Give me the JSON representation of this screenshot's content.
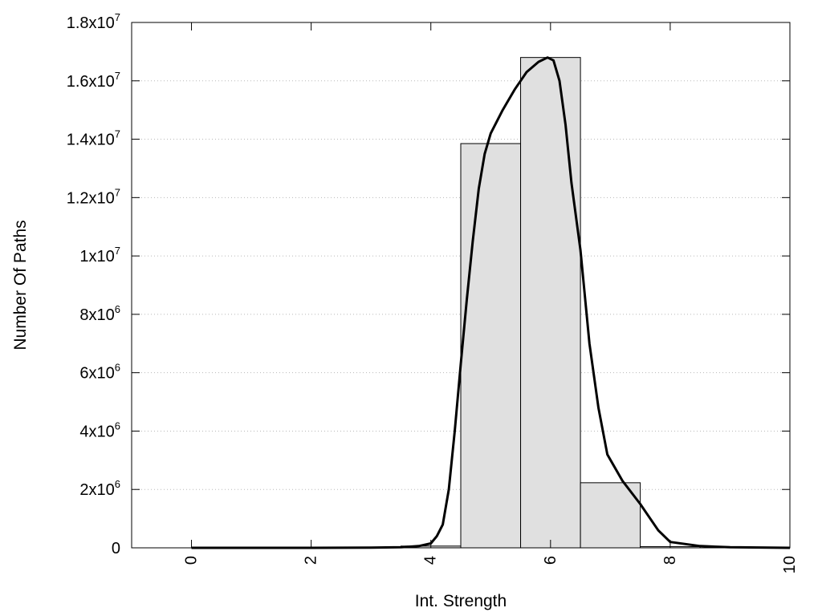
{
  "chart_data": {
    "type": "bar",
    "title": "",
    "xlabel": "Int. Strength",
    "ylabel": "Number Of Paths",
    "xlim": [
      -1,
      10
    ],
    "ylim": [
      0,
      18000000
    ],
    "grid": "horizontal dotted",
    "bar_color": "#e0e0e0",
    "line_color": "#000000",
    "x_ticks": [
      0,
      2,
      4,
      6,
      8,
      10
    ],
    "x_tick_labels": [
      "0",
      "2",
      "4",
      "6",
      "8",
      "10"
    ],
    "y_ticks": [
      0,
      2000000,
      4000000,
      6000000,
      8000000,
      10000000,
      12000000,
      14000000,
      16000000,
      18000000
    ],
    "y_tick_labels": [
      {
        "mantissa": "0",
        "exp": ""
      },
      {
        "mantissa": "2x10",
        "exp": "6"
      },
      {
        "mantissa": "4x10",
        "exp": "6"
      },
      {
        "mantissa": "6x10",
        "exp": "6"
      },
      {
        "mantissa": "8x10",
        "exp": "6"
      },
      {
        "mantissa": "1x10",
        "exp": "7"
      },
      {
        "mantissa": "1.2x10",
        "exp": "7"
      },
      {
        "mantissa": "1.4x10",
        "exp": "7"
      },
      {
        "mantissa": "1.6x10",
        "exp": "7"
      },
      {
        "mantissa": "1.8x10",
        "exp": "7"
      }
    ],
    "bars": [
      {
        "x": 0,
        "value": 0
      },
      {
        "x": 1,
        "value": 0
      },
      {
        "x": 2,
        "value": 0
      },
      {
        "x": 3,
        "value": 5000
      },
      {
        "x": 4,
        "value": 60000
      },
      {
        "x": 5,
        "value": 13850000
      },
      {
        "x": 6,
        "value": 16800000
      },
      {
        "x": 7,
        "value": 2230000
      },
      {
        "x": 8,
        "value": 40000
      },
      {
        "x": 9,
        "value": 0
      }
    ],
    "bar_width": 1,
    "series": [
      {
        "type": "line",
        "x": [
          0,
          1,
          2,
          3,
          3.5,
          3.8,
          4,
          4.1,
          4.2,
          4.3,
          4.4,
          4.5,
          4.6,
          4.7,
          4.8,
          4.9,
          5,
          5.2,
          5.4,
          5.6,
          5.8,
          5.95,
          6.05,
          6.15,
          6.25,
          6.35,
          6.5,
          6.65,
          6.8,
          6.95,
          7.2,
          7.5,
          7.8,
          8,
          8.5,
          9,
          10
        ],
        "y": [
          0,
          0,
          0,
          5000,
          20000,
          60000,
          150000,
          400000,
          800000,
          2000000,
          4000000,
          6300000,
          8500000,
          10500000,
          12300000,
          13500000,
          14200000,
          15000000,
          15700000,
          16300000,
          16650000,
          16800000,
          16700000,
          16000000,
          14500000,
          12500000,
          10200000,
          7000000,
          4800000,
          3200000,
          2300000,
          1500000,
          600000,
          200000,
          60000,
          20000,
          0
        ]
      }
    ]
  }
}
